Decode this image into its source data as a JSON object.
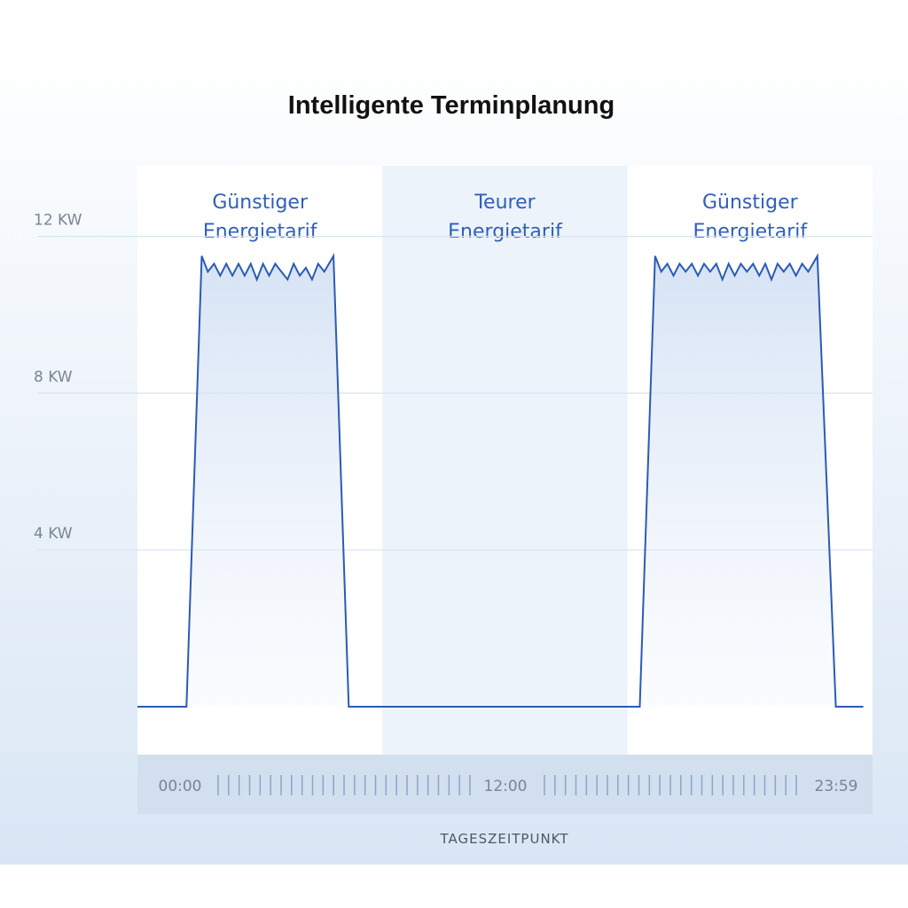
{
  "chart_data": {
    "type": "area",
    "title": "Intelligente Terminplanung",
    "xlabel": "TAGESZEITPUNKT",
    "ylabel": "",
    "ylim": [
      0,
      13
    ],
    "y_ticks": [
      {
        "value": 4,
        "label": "4 KW"
      },
      {
        "value": 8,
        "label": "8 KW"
      },
      {
        "value": 12,
        "label": "12 KW"
      }
    ],
    "x_ticks": [
      {
        "value": 0,
        "label": "00:00"
      },
      {
        "value": 12,
        "label": "12:00"
      },
      {
        "value": 23.98,
        "label": "23:59"
      }
    ],
    "grid": true,
    "zones": [
      {
        "label": "Günstiger Energietarif",
        "line1": "Günstiger",
        "line2": "Energietarif",
        "from": 0,
        "to": 8,
        "tone": "cheap"
      },
      {
        "label": "Teurer Energietarif",
        "line1": "Teurer",
        "line2": "Energietarif",
        "from": 8,
        "to": 16,
        "tone": "expensive"
      },
      {
        "label": "Günstiger Energietarif",
        "line1": "Günstiger",
        "line2": "Energietarif",
        "from": 16,
        "to": 24,
        "tone": "cheap"
      }
    ],
    "series": [
      {
        "x": [
          0,
          1.6,
          2.1,
          2.3,
          2.5,
          2.7,
          2.9,
          3.1,
          3.3,
          3.5,
          3.7,
          3.9,
          4.1,
          4.3,
          4.5,
          4.7,
          4.9,
          5.1,
          5.3,
          5.5,
          5.7,
          5.9,
          6.1,
          6.4,
          6.9,
          8.0,
          12.0,
          16.4,
          16.9,
          17.1,
          17.3,
          17.5,
          17.7,
          17.9,
          18.1,
          18.3,
          18.5,
          18.7,
          18.9,
          19.1,
          19.3,
          19.5,
          19.7,
          19.9,
          20.1,
          20.3,
          20.5,
          20.7,
          20.9,
          21.1,
          21.3,
          21.5,
          21.7,
          21.9,
          22.2,
          22.8,
          23.1,
          23.7
        ],
        "y": [
          0,
          0,
          11.5,
          11.1,
          11.3,
          11.0,
          11.3,
          11.0,
          11.3,
          11.0,
          11.3,
          10.9,
          11.3,
          11.0,
          11.3,
          11.1,
          10.9,
          11.3,
          11.0,
          11.2,
          10.9,
          11.3,
          11.1,
          11.5,
          0,
          0,
          0,
          0,
          11.5,
          11.1,
          11.3,
          11.0,
          11.3,
          11.1,
          11.3,
          11.0,
          11.3,
          11.1,
          11.3,
          10.9,
          11.3,
          11.0,
          11.3,
          11.1,
          11.3,
          11.0,
          11.3,
          10.9,
          11.3,
          11.1,
          11.3,
          11.0,
          11.3,
          11.1,
          11.5,
          0,
          0,
          0
        ]
      }
    ]
  },
  "colors": {
    "line": "#2b5bb5",
    "label": "#2f5fb8",
    "zone_cheap": "#ffffff",
    "zone_expensive": "#edf3fb",
    "grid": "#d9e3f0",
    "axis_text": "#7a8594",
    "title_text": "#111111",
    "timeline_bg": "#d2dfee",
    "timeline_tick": "#8aa6cc",
    "page_gradient_top": "#ffffff",
    "page_gradient_bottom": "#d9e6f5"
  }
}
